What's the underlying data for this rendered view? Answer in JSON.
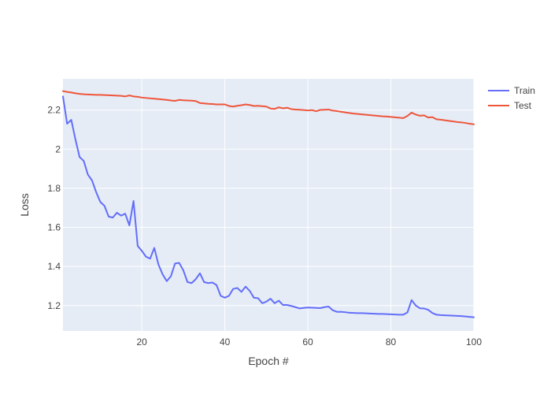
{
  "chart_data": {
    "type": "line",
    "title": "",
    "xlabel": "Epoch #",
    "ylabel": "Loss",
    "xlim": [
      1,
      100
    ],
    "ylim": [
      1.07,
      2.36
    ],
    "xticks": [
      20,
      40,
      60,
      80,
      100
    ],
    "xtick_labels": [
      "20",
      "40",
      "60",
      "80",
      "100"
    ],
    "yticks": [
      1.2,
      1.4,
      1.6,
      1.8,
      2.0,
      2.2
    ],
    "ytick_labels": [
      "1.2",
      "1.4",
      "1.6",
      "1.8",
      "2",
      "2.2"
    ],
    "grid": true,
    "legend_position": "top-right",
    "plot_background": "#e5ecf6",
    "series": [
      {
        "name": "Train",
        "color": "#636efa",
        "x": [
          1,
          2,
          3,
          4,
          5,
          6,
          7,
          8,
          9,
          10,
          11,
          12,
          13,
          14,
          15,
          16,
          17,
          18,
          19,
          20,
          21,
          22,
          23,
          24,
          25,
          26,
          27,
          28,
          29,
          30,
          31,
          32,
          33,
          34,
          35,
          36,
          37,
          38,
          39,
          40,
          41,
          42,
          43,
          44,
          45,
          46,
          47,
          48,
          49,
          50,
          51,
          52,
          53,
          54,
          55,
          56,
          57,
          58,
          59,
          60,
          61,
          62,
          63,
          64,
          65,
          66,
          67,
          68,
          69,
          70,
          71,
          72,
          73,
          74,
          75,
          76,
          77,
          78,
          79,
          80,
          81,
          82,
          83,
          84,
          85,
          86,
          87,
          88,
          89,
          90,
          91,
          92,
          93,
          94,
          95,
          96,
          97,
          98,
          99,
          100
        ],
        "values": [
          2.27,
          2.13,
          2.15,
          2.05,
          1.96,
          1.94,
          1.87,
          1.84,
          1.78,
          1.73,
          1.71,
          1.655,
          1.65,
          1.675,
          1.66,
          1.67,
          1.61,
          1.735,
          1.505,
          1.48,
          1.45,
          1.44,
          1.495,
          1.41,
          1.36,
          1.325,
          1.35,
          1.415,
          1.418,
          1.38,
          1.32,
          1.315,
          1.335,
          1.365,
          1.32,
          1.315,
          1.318,
          1.305,
          1.25,
          1.24,
          1.25,
          1.285,
          1.29,
          1.27,
          1.297,
          1.275,
          1.24,
          1.238,
          1.212,
          1.22,
          1.235,
          1.212,
          1.225,
          1.203,
          1.203,
          1.198,
          1.192,
          1.185,
          1.188,
          1.19,
          1.189,
          1.188,
          1.187,
          1.192,
          1.195,
          1.176,
          1.168,
          1.168,
          1.166,
          1.163,
          1.162,
          1.161,
          1.161,
          1.16,
          1.159,
          1.158,
          1.157,
          1.157,
          1.156,
          1.155,
          1.154,
          1.153,
          1.153,
          1.165,
          1.228,
          1.2,
          1.186,
          1.185,
          1.178,
          1.162,
          1.153,
          1.151,
          1.15,
          1.149,
          1.148,
          1.147,
          1.146,
          1.144,
          1.142,
          1.14
        ]
      },
      {
        "name": "Test",
        "color": "#ef553b",
        "x": [
          1,
          2,
          3,
          4,
          5,
          6,
          7,
          8,
          9,
          10,
          11,
          12,
          13,
          14,
          15,
          16,
          17,
          18,
          19,
          20,
          21,
          22,
          23,
          24,
          25,
          26,
          27,
          28,
          29,
          30,
          31,
          32,
          33,
          34,
          35,
          36,
          37,
          38,
          39,
          40,
          41,
          42,
          43,
          44,
          45,
          46,
          47,
          48,
          49,
          50,
          51,
          52,
          53,
          54,
          55,
          56,
          57,
          58,
          59,
          60,
          61,
          62,
          63,
          64,
          65,
          66,
          67,
          68,
          69,
          70,
          71,
          72,
          73,
          74,
          75,
          76,
          77,
          78,
          79,
          80,
          81,
          82,
          83,
          84,
          85,
          86,
          87,
          88,
          89,
          90,
          91,
          92,
          93,
          94,
          95,
          96,
          97,
          98,
          99,
          100
        ],
        "values": [
          2.297,
          2.293,
          2.29,
          2.286,
          2.283,
          2.281,
          2.28,
          2.279,
          2.278,
          2.278,
          2.277,
          2.276,
          2.275,
          2.274,
          2.273,
          2.27,
          2.275,
          2.27,
          2.268,
          2.264,
          2.262,
          2.26,
          2.258,
          2.256,
          2.254,
          2.252,
          2.249,
          2.247,
          2.252,
          2.25,
          2.249,
          2.248,
          2.246,
          2.236,
          2.234,
          2.232,
          2.231,
          2.229,
          2.229,
          2.229,
          2.221,
          2.218,
          2.222,
          2.225,
          2.229,
          2.226,
          2.221,
          2.222,
          2.22,
          2.218,
          2.208,
          2.206,
          2.214,
          2.209,
          2.212,
          2.205,
          2.203,
          2.202,
          2.2,
          2.198,
          2.2,
          2.194,
          2.201,
          2.202,
          2.203,
          2.197,
          2.195,
          2.191,
          2.188,
          2.185,
          2.182,
          2.18,
          2.178,
          2.176,
          2.174,
          2.172,
          2.17,
          2.168,
          2.167,
          2.165,
          2.163,
          2.161,
          2.159,
          2.17,
          2.187,
          2.177,
          2.171,
          2.173,
          2.162,
          2.164,
          2.153,
          2.151,
          2.148,
          2.145,
          2.142,
          2.139,
          2.137,
          2.134,
          2.13,
          2.127
        ]
      }
    ]
  }
}
